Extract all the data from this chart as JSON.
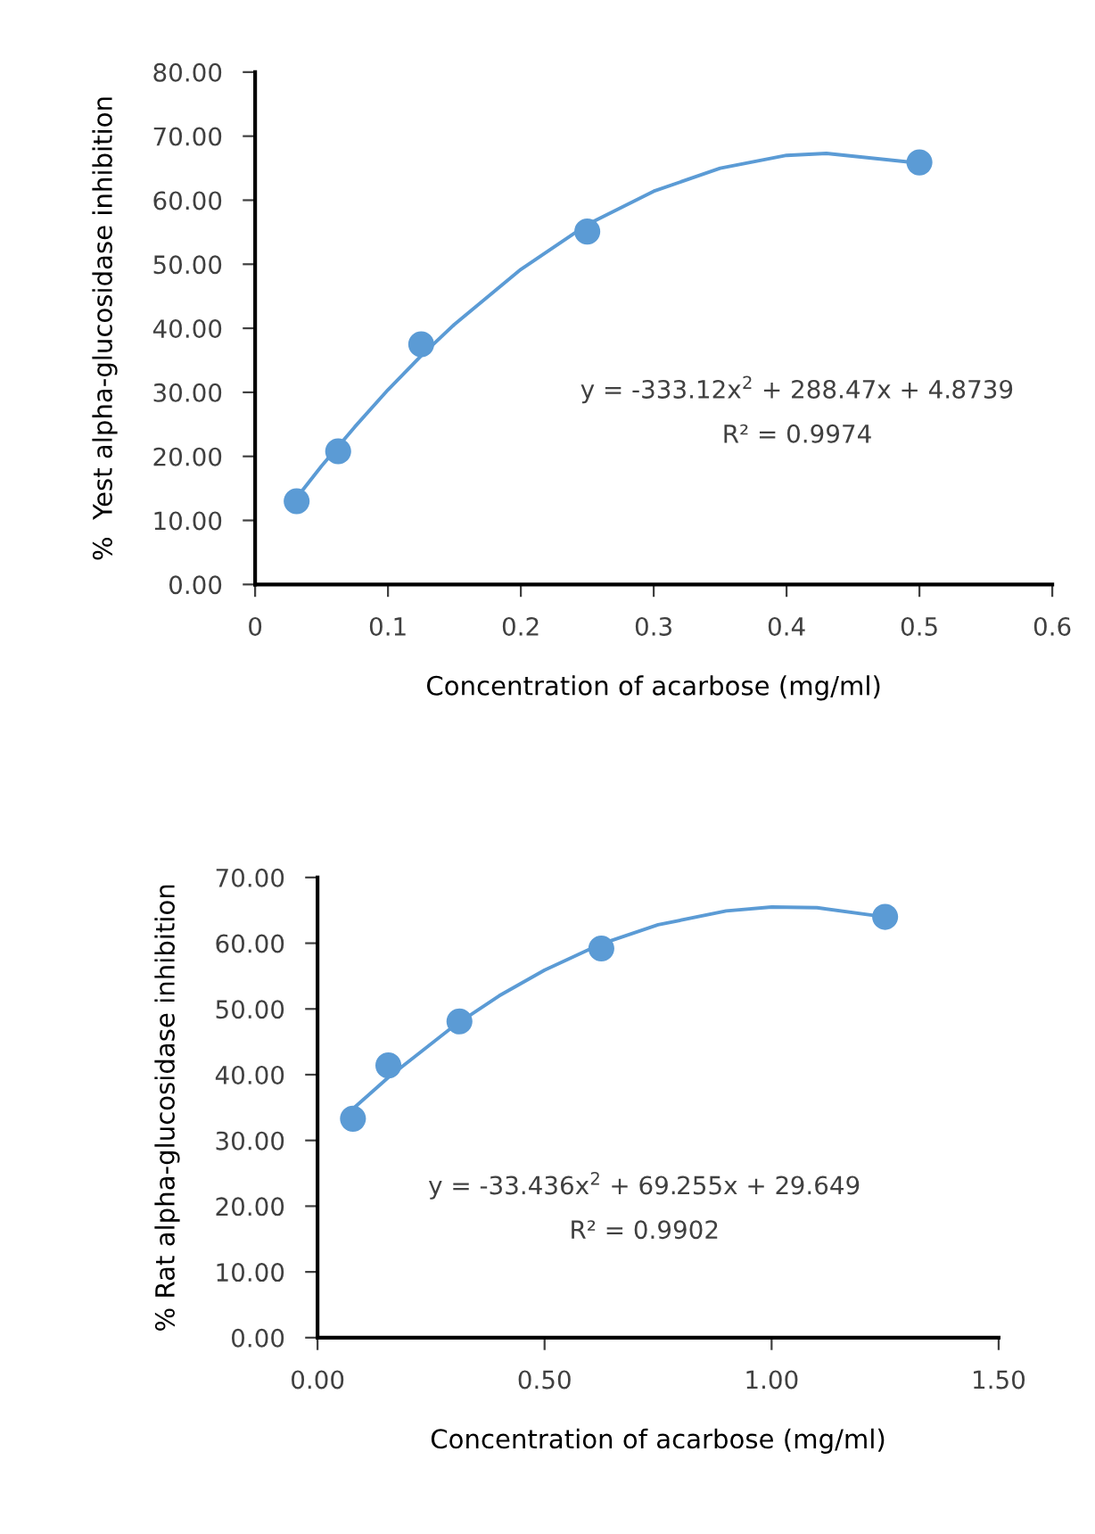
{
  "chart_data": [
    {
      "type": "scatter",
      "xlabel": "Concentration of acarbose (mg/ml)",
      "ylabel": "%  Yest alpha-glucosidase inhibition",
      "xlim": [
        0,
        0.6
      ],
      "xticks": [
        0,
        0.1,
        0.2,
        0.3,
        0.4,
        0.5,
        0.6
      ],
      "ylim": [
        0,
        80
      ],
      "yticks": [
        {
          "value": 0,
          "label": "0.00"
        },
        {
          "value": 10,
          "label": "10.00"
        },
        {
          "value": 20,
          "label": "20.00"
        },
        {
          "value": 30,
          "label": "30.00"
        },
        {
          "value": 40,
          "label": "40.00"
        },
        {
          "value": 50,
          "label": "50.00"
        },
        {
          "value": 60,
          "label": "60.00"
        },
        {
          "value": 70,
          "label": "70.00"
        },
        {
          "value": 80,
          "label": "80.00"
        }
      ],
      "grid": false,
      "legend": false,
      "annotations": [
        "y = -333.12x$^{2}$ + 288.47x + 4.8739",
        "R² = 0.9974"
      ],
      "series": [
        {
          "marker": "circle",
          "color": "#5b9bd5",
          "x": [
            0.03125,
            0.0625,
            0.125,
            0.25,
            0.5
          ],
          "values": [
            13.0,
            20.8,
            37.5,
            55.1,
            65.9
          ]
        },
        {
          "type": "line",
          "marker": "none",
          "line_style": "solid",
          "color": "#5b9bd5",
          "x": [
            0.03,
            0.05,
            0.075,
            0.1,
            0.125,
            0.15,
            0.2,
            0.25,
            0.3,
            0.35,
            0.4,
            0.43,
            0.5
          ],
          "values": [
            13.2,
            18.5,
            24.6,
            30.4,
            35.7,
            40.6,
            49.2,
            56.2,
            61.4,
            65.0,
            67.0,
            67.3,
            65.8
          ]
        }
      ]
    },
    {
      "type": "scatter",
      "xlabel": "Concentration of acarbose (mg/ml)",
      "ylabel": "% Rat alpha-glucosidase inhibition",
      "xlim": [
        0,
        1.5
      ],
      "xticks": [
        {
          "value": 0,
          "label": "0.00"
        },
        {
          "value": 0.5,
          "label": "0.50"
        },
        {
          "value": 1.0,
          "label": "1.00"
        },
        {
          "value": 1.5,
          "label": "1.50"
        }
      ],
      "ylim": [
        0,
        70
      ],
      "yticks": [
        {
          "value": 0,
          "label": "0.00"
        },
        {
          "value": 10,
          "label": "10.00"
        },
        {
          "value": 20,
          "label": "20.00"
        },
        {
          "value": 30,
          "label": "30.00"
        },
        {
          "value": 40,
          "label": "40.00"
        },
        {
          "value": 50,
          "label": "50.00"
        },
        {
          "value": 60,
          "label": "60.00"
        },
        {
          "value": 70,
          "label": "70.00"
        }
      ],
      "grid": false,
      "legend": false,
      "annotations": [
        "y = -33.436x$^{2}$ + 69.255x + 29.649",
        "R² = 0.9902"
      ],
      "series": [
        {
          "marker": "circle",
          "color": "#5b9bd5",
          "x": [
            0.078,
            0.156,
            0.3125,
            0.625,
            1.25
          ],
          "values": [
            33.3,
            41.4,
            48.1,
            59.2,
            64.0
          ]
        },
        {
          "type": "line",
          "marker": "none",
          "line_style": "solid",
          "color": "#5b9bd5",
          "x": [
            0.078,
            0.156,
            0.3,
            0.4,
            0.5,
            0.625,
            0.75,
            0.9,
            1.0,
            1.1,
            1.25
          ],
          "values": [
            34.8,
            39.6,
            47.4,
            52.0,
            55.9,
            59.9,
            62.8,
            64.9,
            65.5,
            65.4,
            64.0
          ]
        }
      ]
    }
  ]
}
